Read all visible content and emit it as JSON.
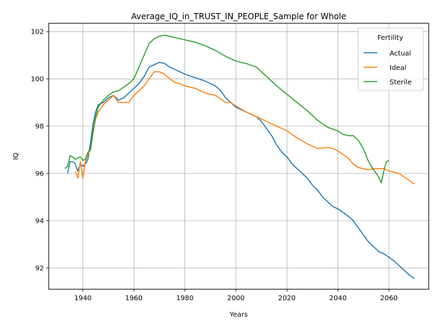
{
  "chart_data": {
    "type": "line",
    "title": "Average_IQ_in_TRUST_IN_PEOPLE_Sample for Whole",
    "xlabel": "Years",
    "ylabel": "IQ",
    "xlim": [
      1926.6,
      2075.6
    ],
    "ylim": [
      91.1,
      102.35
    ],
    "xticks": [
      1940,
      1960,
      1980,
      2000,
      2020,
      2040,
      2060
    ],
    "yticks": [
      92,
      94,
      96,
      98,
      100,
      102
    ],
    "grid": true,
    "legend": {
      "title": "Fertility",
      "location": "top-right"
    },
    "series": [
      {
        "name": "Actual",
        "color": "#1f77b4",
        "x": [
          1934,
          1935,
          1936,
          1937,
          1938,
          1939,
          1940,
          1941,
          1942,
          1943,
          1944,
          1945,
          1946,
          1948,
          1950,
          1952,
          1954,
          1956,
          1958,
          1960,
          1962,
          1964,
          1966,
          1968,
          1970,
          1972,
          1974,
          1976,
          1978,
          1980,
          1984,
          1988,
          1992,
          1994,
          1996,
          1998,
          2000,
          2004,
          2008,
          2010,
          2012,
          2014,
          2016,
          2018,
          2020,
          2022,
          2024,
          2026,
          2028,
          2030,
          2032,
          2034,
          2036,
          2038,
          2040,
          2042,
          2044,
          2046,
          2048,
          2050,
          2052,
          2054,
          2056,
          2058,
          2060,
          2062,
          2064,
          2066,
          2068,
          2070
        ],
        "values": [
          96.0,
          96.5,
          96.5,
          96.4,
          96.1,
          96.4,
          96.3,
          96.4,
          96.6,
          97.3,
          98.1,
          98.6,
          98.9,
          99.0,
          99.2,
          99.3,
          99.1,
          99.2,
          99.4,
          99.6,
          99.8,
          100.1,
          100.5,
          100.6,
          100.7,
          100.65,
          100.5,
          100.4,
          100.3,
          100.2,
          100.05,
          99.9,
          99.7,
          99.5,
          99.2,
          99.0,
          98.8,
          98.6,
          98.4,
          98.2,
          97.9,
          97.6,
          97.2,
          96.9,
          96.7,
          96.4,
          96.2,
          96.0,
          95.8,
          95.5,
          95.3,
          95.0,
          94.8,
          94.6,
          94.5,
          94.35,
          94.2,
          94.0,
          93.7,
          93.4,
          93.1,
          92.9,
          92.7,
          92.6,
          92.45,
          92.3,
          92.1,
          91.9,
          91.7,
          91.55
        ]
      },
      {
        "name": "Ideal",
        "color": "#ff7f0e",
        "x": [
          1937,
          1938,
          1939,
          1940,
          1941,
          1942,
          1943,
          1944,
          1945,
          1946,
          1948,
          1950,
          1952,
          1954,
          1956,
          1958,
          1960,
          1962,
          1964,
          1966,
          1968,
          1970,
          1972,
          1974,
          1976,
          1978,
          1980,
          1984,
          1988,
          1992,
          1994,
          1996,
          1998,
          2000,
          2004,
          2008,
          2012,
          2016,
          2020,
          2024,
          2028,
          2032,
          2036,
          2038,
          2040,
          2042,
          2044,
          2046,
          2048,
          2050,
          2052,
          2054,
          2056,
          2058,
          2060,
          2062,
          2064,
          2066,
          2068,
          2070
        ],
        "values": [
          96.1,
          95.8,
          96.5,
          95.8,
          96.5,
          96.8,
          97.0,
          97.7,
          98.3,
          98.6,
          98.9,
          99.1,
          99.3,
          99.0,
          99.0,
          99.0,
          99.3,
          99.5,
          99.7,
          100.0,
          100.3,
          100.3,
          100.2,
          100.0,
          99.85,
          99.8,
          99.7,
          99.6,
          99.4,
          99.3,
          99.15,
          99.0,
          99.0,
          98.85,
          98.6,
          98.4,
          98.2,
          98.0,
          97.8,
          97.5,
          97.25,
          97.05,
          97.1,
          97.05,
          96.95,
          96.8,
          96.65,
          96.4,
          96.25,
          96.2,
          96.15,
          96.2,
          96.2,
          96.2,
          96.1,
          96.05,
          96.0,
          95.85,
          95.7,
          95.55
        ]
      },
      {
        "name": "Sterile",
        "color": "#2ca02c",
        "x": [
          1933,
          1934,
          1935,
          1936,
          1937,
          1938,
          1939,
          1940,
          1941,
          1942,
          1943,
          1944,
          1945,
          1946,
          1948,
          1950,
          1952,
          1954,
          1956,
          1958,
          1960,
          1962,
          1964,
          1966,
          1968,
          1970,
          1972,
          1974,
          1976,
          1978,
          1980,
          1984,
          1988,
          1992,
          1996,
          2000,
          2004,
          2008,
          2012,
          2016,
          2020,
          2024,
          2028,
          2032,
          2036,
          2040,
          2042,
          2044,
          2046,
          2048,
          2050,
          2052,
          2054,
          2056,
          2057,
          2058,
          2059,
          2060
        ],
        "values": [
          96.2,
          96.3,
          96.75,
          96.7,
          96.6,
          96.65,
          96.7,
          96.55,
          96.6,
          96.9,
          97.0,
          97.8,
          98.4,
          98.8,
          99.1,
          99.3,
          99.45,
          99.5,
          99.65,
          99.8,
          100.0,
          100.5,
          101.0,
          101.5,
          101.7,
          101.8,
          101.85,
          101.8,
          101.75,
          101.7,
          101.65,
          101.55,
          101.4,
          101.2,
          100.95,
          100.75,
          100.65,
          100.5,
          100.1,
          99.7,
          99.35,
          99.0,
          98.65,
          98.25,
          97.95,
          97.8,
          97.65,
          97.6,
          97.6,
          97.4,
          97.05,
          96.5,
          96.15,
          95.85,
          95.6,
          96.1,
          96.5,
          96.55
        ]
      }
    ]
  }
}
